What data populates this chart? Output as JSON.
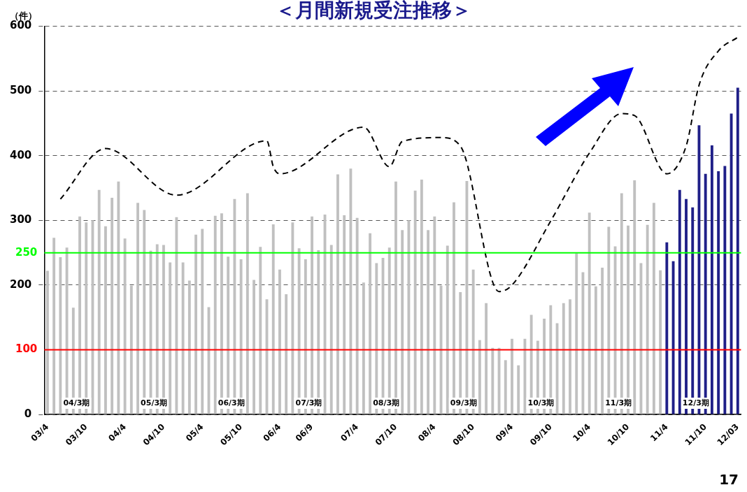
{
  "chart_data": {
    "type": "bar",
    "title": "＜月間新規受注推移＞",
    "ylabel": "（件）",
    "categories": [
      "03/4",
      null,
      null,
      null,
      null,
      null,
      "03/10",
      null,
      null,
      null,
      null,
      null,
      "04/4",
      null,
      null,
      null,
      null,
      null,
      "04/10",
      null,
      null,
      null,
      null,
      null,
      "05/4",
      null,
      null,
      null,
      null,
      null,
      "05/10",
      null,
      null,
      null,
      null,
      null,
      "06/4",
      null,
      null,
      null,
      null,
      "06/9",
      null,
      null,
      null,
      null,
      null,
      null,
      "07/4",
      null,
      null,
      null,
      null,
      null,
      "07/10",
      null,
      null,
      null,
      null,
      null,
      "08/4",
      null,
      null,
      null,
      null,
      null,
      "08/10",
      null,
      null,
      null,
      null,
      null,
      "09/4",
      null,
      null,
      null,
      null,
      null,
      "09/10",
      null,
      null,
      null,
      null,
      null,
      "10/4",
      null,
      null,
      null,
      null,
      null,
      "10/10",
      null,
      null,
      null,
      null,
      null,
      "11/4",
      null,
      null,
      null,
      null,
      null,
      "11/10",
      null,
      null,
      null,
      null,
      "12/03"
    ],
    "series": [
      {
        "colors": [
          "#c0c0c0",
          "#c0c0c0",
          "#c0c0c0",
          "#c0c0c0",
          "#c0c0c0",
          "#c0c0c0",
          "#c0c0c0",
          "#c0c0c0",
          "#c0c0c0",
          "#c0c0c0",
          "#c0c0c0",
          "#c0c0c0",
          "#c0c0c0",
          "#c0c0c0",
          "#c0c0c0",
          "#c0c0c0",
          "#c0c0c0",
          "#c0c0c0",
          "#c0c0c0",
          "#c0c0c0",
          "#c0c0c0",
          "#c0c0c0",
          "#c0c0c0",
          "#c0c0c0",
          "#c0c0c0",
          "#c0c0c0",
          "#c0c0c0",
          "#c0c0c0",
          "#c0c0c0",
          "#c0c0c0",
          "#c0c0c0",
          "#c0c0c0",
          "#c0c0c0",
          "#c0c0c0",
          "#c0c0c0",
          "#c0c0c0",
          "#c0c0c0",
          "#c0c0c0",
          "#c0c0c0",
          "#c0c0c0",
          "#c0c0c0",
          "#c0c0c0",
          "#c0c0c0",
          "#c0c0c0",
          "#c0c0c0",
          "#c0c0c0",
          "#c0c0c0",
          "#c0c0c0",
          "#c0c0c0",
          "#c0c0c0",
          "#c0c0c0",
          "#c0c0c0",
          "#c0c0c0",
          "#c0c0c0",
          "#c0c0c0",
          "#c0c0c0",
          "#c0c0c0",
          "#c0c0c0",
          "#c0c0c0",
          "#c0c0c0",
          "#c0c0c0",
          "#c0c0c0",
          "#c0c0c0",
          "#c0c0c0",
          "#c0c0c0",
          "#c0c0c0",
          "#c0c0c0",
          "#c0c0c0",
          "#c0c0c0",
          "#c0c0c0",
          "#c0c0c0",
          "#c0c0c0",
          "#c0c0c0",
          "#c0c0c0",
          "#c0c0c0",
          "#c0c0c0",
          "#c0c0c0",
          "#c0c0c0",
          "#c0c0c0",
          "#c0c0c0",
          "#c0c0c0",
          "#c0c0c0",
          "#c0c0c0",
          "#c0c0c0",
          "#c0c0c0",
          "#c0c0c0",
          "#c0c0c0",
          "#c0c0c0",
          "#c0c0c0",
          "#c0c0c0",
          "#c0c0c0",
          "#c0c0c0",
          "#c0c0c0",
          "#c0c0c0",
          "#c0c0c0",
          "#c0c0c0",
          "#1f1f88",
          "#1f1f88",
          "#1f1f88",
          "#1f1f88",
          "#1f1f88",
          "#1f1f88",
          "#1f1f88",
          "#1f1f88",
          "#1f1f88",
          "#1f1f88",
          "#1f1f88",
          "#1f1f88"
        ],
        "values": [
          222,
          273,
          243,
          258,
          165,
          306,
          297,
          300,
          347,
          291,
          335,
          360,
          272,
          199,
          327,
          316,
          253,
          263,
          262,
          235,
          305,
          235,
          207,
          278,
          287,
          166,
          307,
          311,
          244,
          333,
          240,
          342,
          208,
          259,
          178,
          294,
          224,
          186,
          297,
          257,
          240,
          306,
          254,
          309,
          262,
          371,
          308,
          380,
          304,
          204,
          280,
          234,
          242,
          258,
          360,
          285,
          300,
          346,
          363,
          285,
          306,
          199,
          261,
          328,
          189,
          361,
          224,
          115,
          172,
          103,
          103,
          84,
          117,
          76,
          117,
          154,
          114,
          148,
          169,
          141,
          172,
          178,
          249,
          220,
          312,
          198,
          227,
          290,
          260,
          342,
          292,
          362,
          234,
          293,
          327,
          223,
          266,
          237,
          347,
          333,
          320,
          447,
          372,
          416,
          376,
          384,
          465,
          505
        ]
      },
      {
        "type": "line",
        "color": "#000000",
        "line_style": "dashed",
        "marker": "none",
        "values": [
          null,
          null,
          333,
          null,
          null,
          null,
          null,
          null,
          null,
          411,
          null,
          null,
          null,
          null,
          null,
          null,
          null,
          null,
          null,
          null,
          339,
          null,
          null,
          null,
          null,
          null,
          null,
          null,
          null,
          null,
          null,
          null,
          null,
          null,
          423,
          383,
          372,
          null,
          null,
          null,
          null,
          null,
          null,
          null,
          null,
          null,
          null,
          null,
          null,
          444,
          null,
          null,
          null,
          383,
          null,
          422,
          null,
          null,
          null,
          null,
          null,
          428,
          null,
          null,
          415,
          null,
          null,
          null,
          null,
          null,
          190,
          null,
          200,
          null,
          null,
          null,
          null,
          null,
          299,
          null,
          null,
          null,
          null,
          null,
          404,
          null,
          null,
          null,
          null,
          465,
          null,
          462,
          null,
          null,
          null,
          null,
          372,
          null,
          null,
          415,
          null,
          509,
          null,
          null,
          562,
          null,
          null,
          583
        ]
      }
    ],
    "ylim": [
      0,
      600
    ],
    "yticks": [
      0,
      200,
      300,
      400,
      500,
      600
    ],
    "grid": "y",
    "legend": false,
    "ref_lines": [
      {
        "axis": "y",
        "value": 250,
        "label": "250",
        "color": "#00ff00"
      },
      {
        "axis": "y",
        "value": 100,
        "label": "100",
        "color": "#ff0000"
      }
    ],
    "annotations": [
      "04/3期",
      "05/3期",
      "06/3期",
      "07/3期",
      "08/3期",
      "09/3期",
      "10/3期",
      "11/3期",
      "12/3期",
      "17"
    ]
  }
}
